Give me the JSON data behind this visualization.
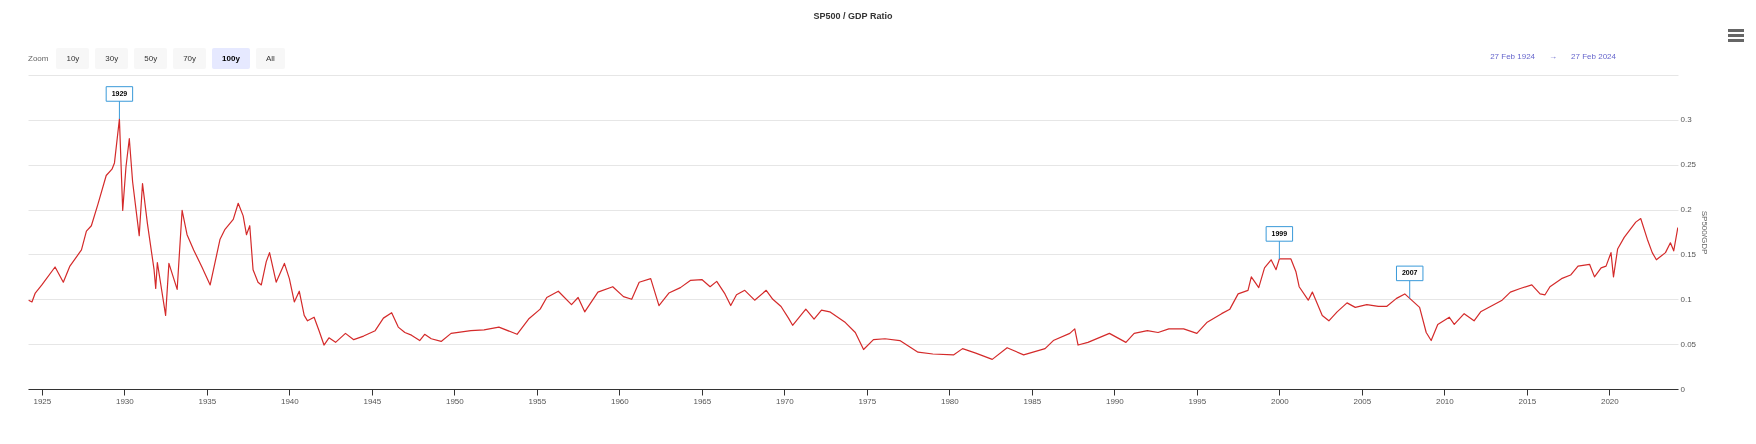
{
  "chart_data": {
    "type": "line",
    "title": "SP500 / GDP Ratio",
    "ylabel": "SP500/GDP",
    "x": [
      1924.2,
      1924.4,
      1924.6,
      1925,
      1925.8,
      1926.3,
      1926.7,
      1927.4,
      1927.7,
      1928.0,
      1928.4,
      1928.9,
      1929.25,
      1929.4,
      1929.7,
      1929.9,
      1930.1,
      1930.3,
      1930.5,
      1930.9,
      1931.1,
      1931.4,
      1931.8,
      1931.9,
      1932.0,
      1932.5,
      1932.7,
      1933.2,
      1933.5,
      1933.8,
      1934.2,
      1934.7,
      1935.2,
      1935.8,
      1936.1,
      1936.6,
      1936.9,
      1937.2,
      1937.4,
      1937.6,
      1937.8,
      1938.1,
      1938.3,
      1938.6,
      1938.8,
      1939.2,
      1939.7,
      1940.0,
      1940.3,
      1940.6,
      1940.9,
      1941.1,
      1941.5,
      1941.8,
      1942.1,
      1942.4,
      1942.8,
      1943.4,
      1943.9,
      1944.5,
      1945.2,
      1945.7,
      1946.2,
      1946.6,
      1947.0,
      1947.4,
      1947.9,
      1948.2,
      1948.6,
      1949.2,
      1949.8,
      1951.0,
      1951.8,
      1952.7,
      1953.8,
      1954.5,
      1955.2,
      1955.6,
      1956.3,
      1957.1,
      1957.5,
      1957.9,
      1958.7,
      1959.6,
      1960.25,
      1960.75,
      1961.2,
      1961.9,
      1962.4,
      1963.0,
      1963.7,
      1964.3,
      1965.0,
      1965.5,
      1965.9,
      1966.4,
      1966.75,
      1967.1,
      1967.6,
      1968.2,
      1968.9,
      1969.3,
      1969.8,
      1970.25,
      1970.5,
      1971.3,
      1971.8,
      1972.25,
      1972.75,
      1973.7,
      1974.3,
      1974.8,
      1975.4,
      1976.1,
      1977.0,
      1978.1,
      1979.0,
      1980.25,
      1980.8,
      1981.6,
      1982.6,
      1983.5,
      1984.5,
      1985.8,
      1986.3,
      1987.3,
      1987.6,
      1987.8,
      1988.4,
      1989.7,
      1990.7,
      1991.2,
      1992.0,
      1992.65,
      1993.3,
      1994.2,
      1995.0,
      1995.6,
      1996.5,
      1997.0,
      1997.5,
      1998.1,
      1998.3,
      1998.75,
      1999.1,
      1999.5,
      1999.8,
      2000.0,
      2000.7,
      2001.0,
      2001.2,
      2001.75,
      2002.0,
      2002.6,
      2003.0,
      2003.5,
      2004.1,
      2004.6,
      2005.3,
      2006.0,
      2006.5,
      2007.1,
      2007.6,
      2007.9,
      2008.5,
      2008.9,
      2009.2,
      2009.6,
      2010.3,
      2010.6,
      2011.2,
      2011.8,
      2012.2,
      2013.5,
      2014.0,
      2014.6,
      2015.3,
      2015.8,
      2016.1,
      2016.4,
      2017.1,
      2017.65,
      2018.1,
      2018.8,
      2019.1,
      2019.5,
      2019.8,
      2020.1,
      2020.25,
      2020.5,
      2020.9,
      2021.6,
      2021.9,
      2022.3,
      2022.6,
      2022.85,
      2023.4,
      2023.7,
      2023.9,
      2024.15
    ],
    "values": [
      0.099,
      0.097,
      0.107,
      0.116,
      0.136,
      0.119,
      0.137,
      0.155,
      0.176,
      0.182,
      0.206,
      0.238,
      0.245,
      0.252,
      0.301,
      0.199,
      0.248,
      0.279,
      0.231,
      0.171,
      0.229,
      0.184,
      0.133,
      0.112,
      0.141,
      0.082,
      0.14,
      0.111,
      0.199,
      0.172,
      0.155,
      0.136,
      0.116,
      0.167,
      0.178,
      0.189,
      0.207,
      0.193,
      0.172,
      0.182,
      0.133,
      0.119,
      0.116,
      0.142,
      0.152,
      0.119,
      0.14,
      0.123,
      0.097,
      0.109,
      0.082,
      0.076,
      0.08,
      0.065,
      0.049,
      0.057,
      0.052,
      0.062,
      0.055,
      0.059,
      0.065,
      0.079,
      0.085,
      0.069,
      0.063,
      0.06,
      0.054,
      0.061,
      0.056,
      0.053,
      0.062,
      0.065,
      0.066,
      0.069,
      0.061,
      0.078,
      0.089,
      0.102,
      0.109,
      0.094,
      0.102,
      0.086,
      0.108,
      0.114,
      0.103,
      0.1,
      0.119,
      0.123,
      0.093,
      0.107,
      0.113,
      0.121,
      0.122,
      0.114,
      0.12,
      0.106,
      0.093,
      0.105,
      0.11,
      0.099,
      0.11,
      0.1,
      0.092,
      0.079,
      0.071,
      0.089,
      0.078,
      0.088,
      0.086,
      0.074,
      0.063,
      0.044,
      0.055,
      0.056,
      0.054,
      0.041,
      0.039,
      0.038,
      0.045,
      0.04,
      0.033,
      0.046,
      0.038,
      0.045,
      0.054,
      0.062,
      0.067,
      0.049,
      0.052,
      0.062,
      0.052,
      0.062,
      0.065,
      0.063,
      0.067,
      0.067,
      0.062,
      0.074,
      0.084,
      0.089,
      0.106,
      0.11,
      0.125,
      0.113,
      0.135,
      0.144,
      0.133,
      0.145,
      0.145,
      0.131,
      0.114,
      0.099,
      0.108,
      0.082,
      0.076,
      0.086,
      0.096,
      0.091,
      0.094,
      0.092,
      0.092,
      0.101,
      0.106,
      0.101,
      0.091,
      0.063,
      0.054,
      0.072,
      0.08,
      0.072,
      0.084,
      0.076,
      0.086,
      0.099,
      0.108,
      0.112,
      0.116,
      0.106,
      0.105,
      0.114,
      0.123,
      0.127,
      0.137,
      0.139,
      0.125,
      0.135,
      0.137,
      0.152,
      0.125,
      0.156,
      0.169,
      0.186,
      0.19,
      0.167,
      0.152,
      0.144,
      0.152,
      0.163,
      0.154,
      0.18
    ],
    "color": "#d42a2a",
    "xlim": [
      1924.16,
      2024.16
    ],
    "xticks": [
      1925,
      1930,
      1935,
      1940,
      1945,
      1950,
      1955,
      1960,
      1965,
      1970,
      1975,
      1980,
      1985,
      1990,
      1995,
      2000,
      2005,
      2010,
      2015,
      2020
    ],
    "ylim": [
      0,
      0.35
    ],
    "yticks": [
      0,
      0.05,
      0.1,
      0.15,
      0.2,
      0.25,
      0.3,
      {
        "value": 0.35,
        "label": null
      }
    ],
    "grid": "y",
    "annotations": [
      {
        "text": "1929",
        "x": 1929.7,
        "y": 0.301
      },
      {
        "text": "1999",
        "x": 2000.0,
        "y": 0.145
      },
      {
        "text": "2007",
        "x": 2007.9,
        "y": 0.101
      },
      "Zoom",
      "10y",
      "30y",
      "50y",
      "70y",
      "100y",
      "All",
      "27 Feb 1924",
      "→",
      "27 Feb 2024"
    ]
  }
}
